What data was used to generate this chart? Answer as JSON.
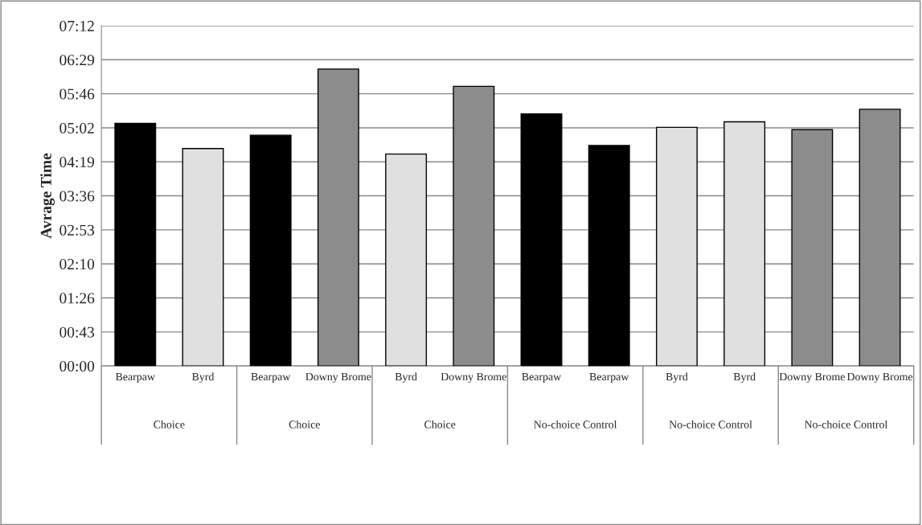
{
  "chart_data": {
    "type": "bar",
    "ylabel": "Avrage Time",
    "categories": [
      "Bearpaw",
      "Byrd",
      "Bearpaw",
      "Downy Brome",
      "Byrd",
      "Downy Brome",
      "Bearpaw",
      "Bearpaw",
      "Byrd",
      "Byrd",
      "Downy Brome",
      "Downy Brome"
    ],
    "values": [
      308,
      276,
      293,
      377,
      269,
      355,
      320,
      280,
      303,
      310,
      300,
      326
    ],
    "colors": [
      "#000000",
      "#e0e0e0",
      "#000000",
      "#8c8c8c",
      "#e0e0e0",
      "#8c8c8c",
      "#000000",
      "#000000",
      "#e0e0e0",
      "#e0e0e0",
      "#8c8c8c",
      "#8c8c8c"
    ],
    "annotations": [
      "Choice",
      "Choice",
      "Choice",
      "No-choice Control",
      "No-choice Control",
      "No-choice Control"
    ],
    "ylim": [
      0,
      432
    ],
    "yticks": [
      {
        "value": 0,
        "label": "00:00"
      },
      {
        "value": 43.2,
        "label": "00:43"
      },
      {
        "value": 86.4,
        "label": "01:26"
      },
      {
        "value": 129.6,
        "label": "02:10"
      },
      {
        "value": 172.8,
        "label": "02:53"
      },
      {
        "value": 216,
        "label": "03:36"
      },
      {
        "value": 259.2,
        "label": "04:19"
      },
      {
        "value": 302.4,
        "label": "05:02"
      },
      {
        "value": 345.6,
        "label": "05:46"
      },
      {
        "value": 388.8,
        "label": "06:29"
      },
      {
        "value": 432,
        "label": "07:12"
      }
    ],
    "grid": "y",
    "legend": false
  }
}
